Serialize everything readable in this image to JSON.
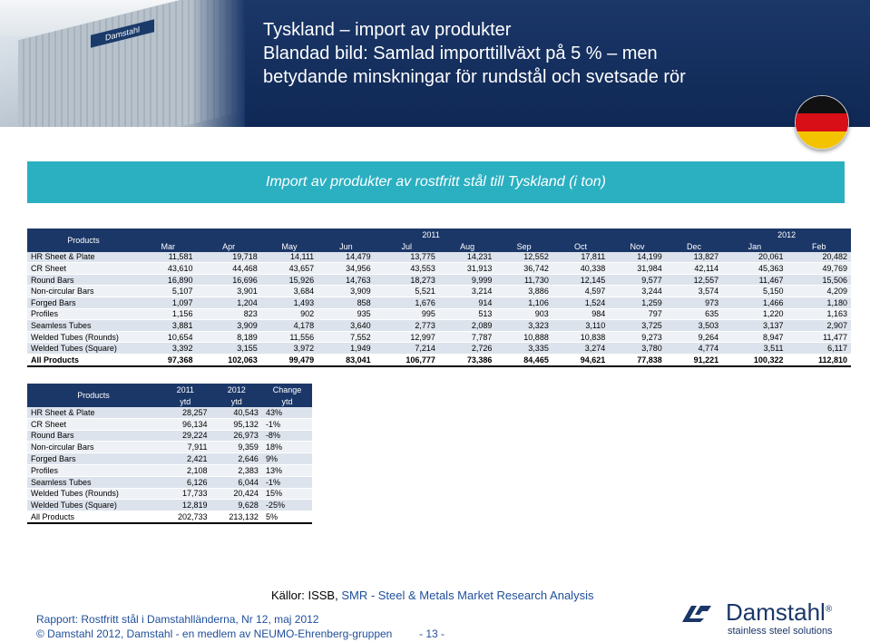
{
  "title": {
    "line1": "Tyskland – import av produkter",
    "line2": "Blandad bild: Samlad importtillväxt på 5 % – men",
    "line3": "betydande minskningar för rundstål och svetsade rör"
  },
  "photo": {
    "sign_text": "Damstahl"
  },
  "banner": "Import av produkter av rostfritt stål till Tyskland (i ton)",
  "monthly_table": {
    "products_label": "Products",
    "year_2011": "2011",
    "year_2012": "2012",
    "months": [
      "Mar",
      "Apr",
      "May",
      "Jun",
      "Jul",
      "Aug",
      "Sep",
      "Oct",
      "Nov",
      "Dec",
      "Jan",
      "Feb"
    ],
    "rows": [
      {
        "name": "HR Sheet & Plate",
        "values": [
          "11,581",
          "19,718",
          "14,111",
          "14,479",
          "13,775",
          "14,231",
          "12,552",
          "17,811",
          "14,199",
          "13,827",
          "20,061",
          "20,482"
        ]
      },
      {
        "name": "CR Sheet",
        "values": [
          "43,610",
          "44,468",
          "43,657",
          "34,956",
          "43,553",
          "31,913",
          "36,742",
          "40,338",
          "31,984",
          "42,114",
          "45,363",
          "49,769"
        ]
      },
      {
        "name": "Round Bars",
        "values": [
          "16,890",
          "16,696",
          "15,926",
          "14,763",
          "18,273",
          "9,999",
          "11,730",
          "12,145",
          "9,577",
          "12,557",
          "11,467",
          "15,506"
        ]
      },
      {
        "name": "Non-circular Bars",
        "values": [
          "5,107",
          "3,901",
          "3,684",
          "3,909",
          "5,521",
          "3,214",
          "3,886",
          "4,597",
          "3,244",
          "3,574",
          "5,150",
          "4,209"
        ]
      },
      {
        "name": "Forged Bars",
        "values": [
          "1,097",
          "1,204",
          "1,493",
          "858",
          "1,676",
          "914",
          "1,106",
          "1,524",
          "1,259",
          "973",
          "1,466",
          "1,180"
        ]
      },
      {
        "name": "Profiles",
        "values": [
          "1,156",
          "823",
          "902",
          "935",
          "995",
          "513",
          "903",
          "984",
          "797",
          "635",
          "1,220",
          "1,163"
        ]
      },
      {
        "name": "Seamless Tubes",
        "values": [
          "3,881",
          "3,909",
          "4,178",
          "3,640",
          "2,773",
          "2,089",
          "3,323",
          "3,110",
          "3,725",
          "3,503",
          "3,137",
          "2,907"
        ]
      },
      {
        "name": "Welded Tubes (Rounds)",
        "values": [
          "10,654",
          "8,189",
          "11,556",
          "7,552",
          "12,997",
          "7,787",
          "10,888",
          "10,838",
          "9,273",
          "9,264",
          "8,947",
          "11,477"
        ]
      },
      {
        "name": "Welded Tubes (Square)",
        "values": [
          "3,392",
          "3,155",
          "3,972",
          "1,949",
          "7,214",
          "2,726",
          "3,335",
          "3,274",
          "3,780",
          "4,774",
          "3,511",
          "6,117"
        ]
      }
    ],
    "total": {
      "name": "All Products",
      "values": [
        "97,368",
        "102,063",
        "99,479",
        "83,041",
        "106,777",
        "73,386",
        "84,465",
        "94,621",
        "77,838",
        "91,221",
        "100,322",
        "112,810"
      ]
    }
  },
  "ytd_table": {
    "products_label": "Products",
    "col1_year": "2011",
    "col1_sub": "ytd",
    "col2_year": "2012",
    "col2_sub": "ytd",
    "col3_top": "Change",
    "col3_sub": "ytd",
    "rows": [
      {
        "name": "HR Sheet & Plate",
        "y2011": "28,257",
        "y2012": "40,543",
        "change": "43%"
      },
      {
        "name": "CR Sheet",
        "y2011": "96,134",
        "y2012": "95,132",
        "change": "-1%"
      },
      {
        "name": "Round Bars",
        "y2011": "29,224",
        "y2012": "26,973",
        "change": "-8%"
      },
      {
        "name": "Non-circular Bars",
        "y2011": "7,911",
        "y2012": "9,359",
        "change": "18%"
      },
      {
        "name": "Forged Bars",
        "y2011": "2,421",
        "y2012": "2,646",
        "change": "9%"
      },
      {
        "name": "Profiles",
        "y2011": "2,108",
        "y2012": "2,383",
        "change": "13%"
      },
      {
        "name": "Seamless Tubes",
        "y2011": "6,126",
        "y2012": "6,044",
        "change": "-1%"
      },
      {
        "name": "Welded Tubes (Rounds)",
        "y2011": "17,733",
        "y2012": "20,424",
        "change": "15%"
      },
      {
        "name": "Welded Tubes (Square)",
        "y2011": "12,819",
        "y2012": "9,628",
        "change": "-25%"
      }
    ],
    "total": {
      "name": "All Products",
      "y2011": "202,733",
      "y2012": "213,132",
      "change": "5%"
    }
  },
  "footer": {
    "sources_prefix": "Källor: ISSB, ",
    "sources_link": "SMR - Steel & Metals Market Research Analysis",
    "report": "Rapport: Rostfritt stål i Damstahlländerna, Nr 12, maj 2012",
    "copyright": "© Damstahl 2012, Damstahl - en medlem av NEUMO-Ehrenberg-gruppen",
    "page": "- 13 -"
  },
  "logo": {
    "name": "Damstahl",
    "registered": "®",
    "tagline": "stainless steel solutions"
  },
  "colors": {
    "header_bg": "#1b3768",
    "banner": "#2bb0c1",
    "row_alt": "#dde3ec"
  }
}
